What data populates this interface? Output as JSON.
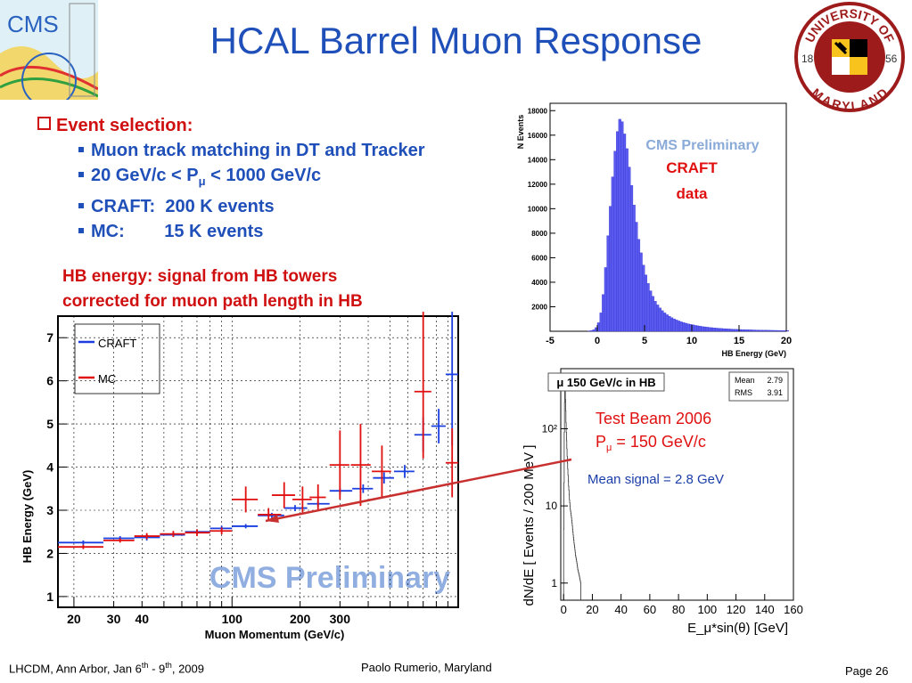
{
  "title": "HCAL Barrel Muon Response",
  "colors": {
    "title": "#1f4fb8",
    "accent_red": "#d01010",
    "hist_fill": "#5a5aee",
    "craft": "#1a3ee0",
    "mc": "#e01010"
  },
  "logos": {
    "cms": "CMS",
    "umd_top": "UNIVERSITY OF",
    "umd_bottom": "MARYLAND",
    "umd_year_left": "18",
    "umd_year_right": "56"
  },
  "bullets": {
    "heading": "Event selection:",
    "items": [
      {
        "label": "Muon track matching in DT and Tracker"
      },
      {
        "pre": "20 GeV/c < P",
        "sub": "μ",
        "post": " < 1000 GeV/c"
      },
      {
        "label": "CRAFT:  200 K events"
      },
      {
        "label": "MC:        15 K events"
      }
    ]
  },
  "hb_note": {
    "line1": "HB energy: signal from HB towers",
    "line2": "corrected for muon path length in HB"
  },
  "chart_data": [
    {
      "type": "scatter",
      "xlabel": "Muon Momentum (GeV/c)",
      "ylabel": "HB Energy (GeV)",
      "xscale": "log",
      "xlim": [
        17,
        1000
      ],
      "ylim": [
        0.75,
        7.5
      ],
      "xticks": [
        "20",
        "30",
        "40",
        "100",
        "200",
        "300"
      ],
      "xtick_values": [
        20,
        30,
        40,
        100,
        200,
        300
      ],
      "yticks": [
        "1",
        "2",
        "3",
        "4",
        "5",
        "6",
        "7"
      ],
      "yticks_values": [
        1,
        2,
        3,
        4,
        5,
        6,
        7
      ],
      "watermark": "CMS Preliminary",
      "legend_position": "top-left",
      "series": [
        {
          "name": "CRAFT",
          "points": [
            {
              "x": 22,
              "y": 2.25,
              "xlo": 17,
              "xhi": 27,
              "ylo": 2.2,
              "yhi": 2.3
            },
            {
              "x": 32,
              "y": 2.35,
              "xlo": 27,
              "xhi": 37,
              "ylo": 2.3,
              "yhi": 2.4
            },
            {
              "x": 42,
              "y": 2.37,
              "xlo": 37,
              "xhi": 48,
              "ylo": 2.3,
              "yhi": 2.44
            },
            {
              "x": 55,
              "y": 2.43,
              "xlo": 48,
              "xhi": 62,
              "ylo": 2.38,
              "yhi": 2.48
            },
            {
              "x": 70,
              "y": 2.5,
              "xlo": 62,
              "xhi": 80,
              "ylo": 2.45,
              "yhi": 2.55
            },
            {
              "x": 90,
              "y": 2.58,
              "xlo": 80,
              "xhi": 100,
              "ylo": 2.52,
              "yhi": 2.64
            },
            {
              "x": 115,
              "y": 2.63,
              "xlo": 100,
              "xhi": 130,
              "ylo": 2.58,
              "yhi": 2.68
            },
            {
              "x": 150,
              "y": 2.88,
              "xlo": 130,
              "xhi": 170,
              "ylo": 2.82,
              "yhi": 2.94
            },
            {
              "x": 190,
              "y": 3.05,
              "xlo": 170,
              "xhi": 215,
              "ylo": 2.98,
              "yhi": 3.12
            },
            {
              "x": 240,
              "y": 3.15,
              "xlo": 215,
              "xhi": 270,
              "ylo": 3.08,
              "yhi": 3.22
            },
            {
              "x": 300,
              "y": 3.45,
              "xlo": 270,
              "xhi": 340,
              "ylo": 3.37,
              "yhi": 3.53
            },
            {
              "x": 380,
              "y": 3.5,
              "xlo": 340,
              "xhi": 420,
              "ylo": 3.4,
              "yhi": 3.6
            },
            {
              "x": 470,
              "y": 3.75,
              "xlo": 420,
              "xhi": 520,
              "ylo": 3.62,
              "yhi": 3.88
            },
            {
              "x": 580,
              "y": 3.9,
              "xlo": 520,
              "xhi": 640,
              "ylo": 3.75,
              "yhi": 4.05
            },
            {
              "x": 700,
              "y": 4.75,
              "xlo": 640,
              "xhi": 760,
              "ylo": 4.35,
              "yhi": 5.15
            },
            {
              "x": 820,
              "y": 4.95,
              "xlo": 760,
              "xhi": 880,
              "ylo": 4.55,
              "yhi": 5.35
            },
            {
              "x": 940,
              "y": 6.15,
              "xlo": 880,
              "xhi": 1000,
              "ylo": 4.5,
              "yhi": 7.8
            }
          ]
        },
        {
          "name": "MC",
          "points": [
            {
              "x": 22,
              "y": 2.15,
              "xlo": 17,
              "xhi": 27,
              "ylo": 2.1,
              "yhi": 2.2
            },
            {
              "x": 32,
              "y": 2.3,
              "xlo": 27,
              "xhi": 37,
              "ylo": 2.25,
              "yhi": 2.35
            },
            {
              "x": 42,
              "y": 2.4,
              "xlo": 37,
              "xhi": 48,
              "ylo": 2.33,
              "yhi": 2.47
            },
            {
              "x": 55,
              "y": 2.45,
              "xlo": 48,
              "xhi": 62,
              "ylo": 2.38,
              "yhi": 2.52
            },
            {
              "x": 70,
              "y": 2.48,
              "xlo": 62,
              "xhi": 80,
              "ylo": 2.4,
              "yhi": 2.56
            },
            {
              "x": 90,
              "y": 2.52,
              "xlo": 80,
              "xhi": 100,
              "ylo": 2.44,
              "yhi": 2.6
            },
            {
              "x": 115,
              "y": 3.25,
              "xlo": 100,
              "xhi": 130,
              "ylo": 2.95,
              "yhi": 3.55
            },
            {
              "x": 145,
              "y": 2.9,
              "xlo": 130,
              "xhi": 165,
              "ylo": 2.75,
              "yhi": 3.05
            },
            {
              "x": 170,
              "y": 3.35,
              "xlo": 150,
              "xhi": 190,
              "ylo": 3.05,
              "yhi": 3.65
            },
            {
              "x": 205,
              "y": 3.25,
              "xlo": 185,
              "xhi": 225,
              "ylo": 2.95,
              "yhi": 3.55
            },
            {
              "x": 240,
              "y": 3.3,
              "xlo": 220,
              "xhi": 260,
              "ylo": 3.0,
              "yhi": 3.6
            },
            {
              "x": 300,
              "y": 4.05,
              "xlo": 270,
              "xhi": 330,
              "ylo": 3.25,
              "yhi": 4.85
            },
            {
              "x": 370,
              "y": 4.05,
              "xlo": 335,
              "xhi": 410,
              "ylo": 3.1,
              "yhi": 5.0
            },
            {
              "x": 460,
              "y": 3.9,
              "xlo": 415,
              "xhi": 505,
              "ylo": 3.3,
              "yhi": 4.5
            },
            {
              "x": 700,
              "y": 5.75,
              "xlo": 640,
              "xhi": 760,
              "ylo": 4.2,
              "yhi": 7.7
            },
            {
              "x": 940,
              "y": 4.1,
              "xlo": 880,
              "xhi": 1000,
              "ylo": 3.3,
              "yhi": 4.9
            }
          ]
        }
      ]
    },
    {
      "type": "bar",
      "xlabel": "HB Energy (GeV)",
      "ylabel": "N Events",
      "xlim": [
        -5,
        20
      ],
      "ylim": [
        0,
        18600
      ],
      "xticks": [
        "-5",
        "0",
        "5",
        "10",
        "15",
        "20"
      ],
      "xtick_values": [
        -5,
        0,
        5,
        10,
        15,
        20
      ],
      "yticks": [
        "2000",
        "4000",
        "6000",
        "8000",
        "10000",
        "12000",
        "14000",
        "16000",
        "18000"
      ],
      "yticks_values": [
        2000,
        4000,
        6000,
        8000,
        10000,
        12000,
        14000,
        16000,
        18000
      ],
      "annotations": [
        "CMS Preliminary",
        "CRAFT",
        "data"
      ],
      "bin_width": 0.25,
      "bin_start": -1.0,
      "values": [
        30,
        60,
        120,
        300,
        700,
        1500,
        3000,
        5200,
        7800,
        10200,
        12600,
        14700,
        16300,
        17300,
        17100,
        16100,
        14900,
        13400,
        11900,
        10300,
        8900,
        7500,
        6400,
        5400,
        4600,
        3900,
        3300,
        2850,
        2450,
        2150,
        1900,
        1680,
        1500,
        1350,
        1220,
        1110,
        1010,
        920,
        840,
        770,
        710,
        655,
        605,
        560,
        520,
        480,
        445,
        415,
        385,
        360,
        335,
        315,
        295,
        275,
        258,
        242,
        228,
        215,
        202,
        190,
        180,
        170,
        161,
        152,
        144,
        137,
        130,
        123,
        117,
        111,
        106,
        101,
        96,
        92,
        88,
        84,
        80,
        77,
        74,
        71,
        68,
        65,
        62,
        60,
        58
      ]
    },
    {
      "type": "bar",
      "xlabel": "E_μ*sin(θ) [GeV]",
      "ylabel": "dN/dE [ Events / 200 MeV ]",
      "yscale": "log",
      "xlim": [
        -2,
        160
      ],
      "xticks": [
        "0",
        "20",
        "40",
        "60",
        "80",
        "100",
        "120",
        "140",
        "160"
      ],
      "xtick_values": [
        0,
        20,
        40,
        60,
        80,
        100,
        120,
        140,
        160
      ],
      "yticks": [
        "1",
        "10",
        "10²"
      ],
      "yticks_values": [
        1,
        10,
        100
      ],
      "title_box": "μ 150 GeV/c in HB",
      "stats": [
        {
          "label": "Mean",
          "value": "2.79"
        },
        {
          "label": "RMS",
          "value": "3.91"
        }
      ],
      "annotations": {
        "line1": "Test Beam 2006",
        "line2_pre": "P",
        "line2_sub": "μ",
        "line2_post": " = 150 GeV/c",
        "mean_signal": "Mean signal = 2.8 GeV"
      },
      "bin_width": 0.2,
      "bin_start": 0,
      "values": [
        5,
        20,
        90,
        220,
        330,
        310,
        240,
        170,
        120,
        90,
        70,
        55,
        44,
        36,
        30,
        25,
        21,
        18,
        16,
        14,
        12,
        11,
        10,
        9,
        8.5,
        8,
        7.5,
        7,
        6.5,
        6,
        5.5,
        5,
        4.6,
        4.2,
        3.9,
        3.6,
        3.3,
        3.1,
        2.9,
        2.7,
        2.5,
        2.3,
        2.2,
        2.1,
        2.0,
        1.9,
        1.8,
        1.7,
        1.6,
        1.5,
        1.45,
        1.4,
        1.35,
        1.3,
        1.25,
        1.2,
        1.15,
        1.1,
        1.05,
        1.0
      ]
    }
  ],
  "footer": {
    "left_pre": "LHCDM, Ann Arbor, Jan 6",
    "left_sup1": "th",
    "left_mid": " - 9",
    "left_sup2": "th",
    "left_post": ", 2009",
    "mid": "Paolo Rumerio,  Maryland",
    "right": "Page 26"
  }
}
